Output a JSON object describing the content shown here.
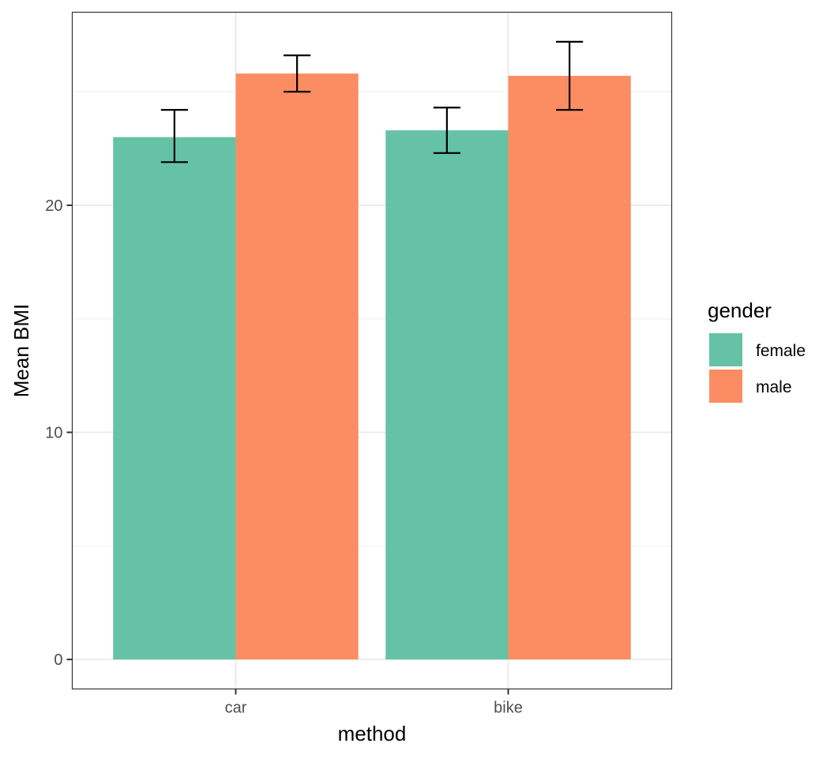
{
  "chart_data": {
    "type": "bar",
    "title": "",
    "xlabel": "method",
    "ylabel": "Mean BMI",
    "categories": [
      "car",
      "bike"
    ],
    "series": [
      {
        "name": "female",
        "color": "#66C2A5",
        "values": [
          23.0,
          23.3
        ],
        "err_low": [
          21.9,
          22.3
        ],
        "err_high": [
          24.2,
          24.3
        ]
      },
      {
        "name": "male",
        "color": "#FC8D62",
        "values": [
          25.8,
          25.7
        ],
        "err_low": [
          25.0,
          24.2
        ],
        "err_high": [
          26.6,
          27.2
        ]
      }
    ],
    "ylim": [
      -1.3,
      28.5
    ],
    "y_ticks": [
      0,
      10,
      20
    ],
    "y_tick_labels": [
      "0",
      "10",
      "20"
    ],
    "legend": {
      "title": "gender",
      "position": "right"
    },
    "grid": true,
    "theme": "bw"
  }
}
